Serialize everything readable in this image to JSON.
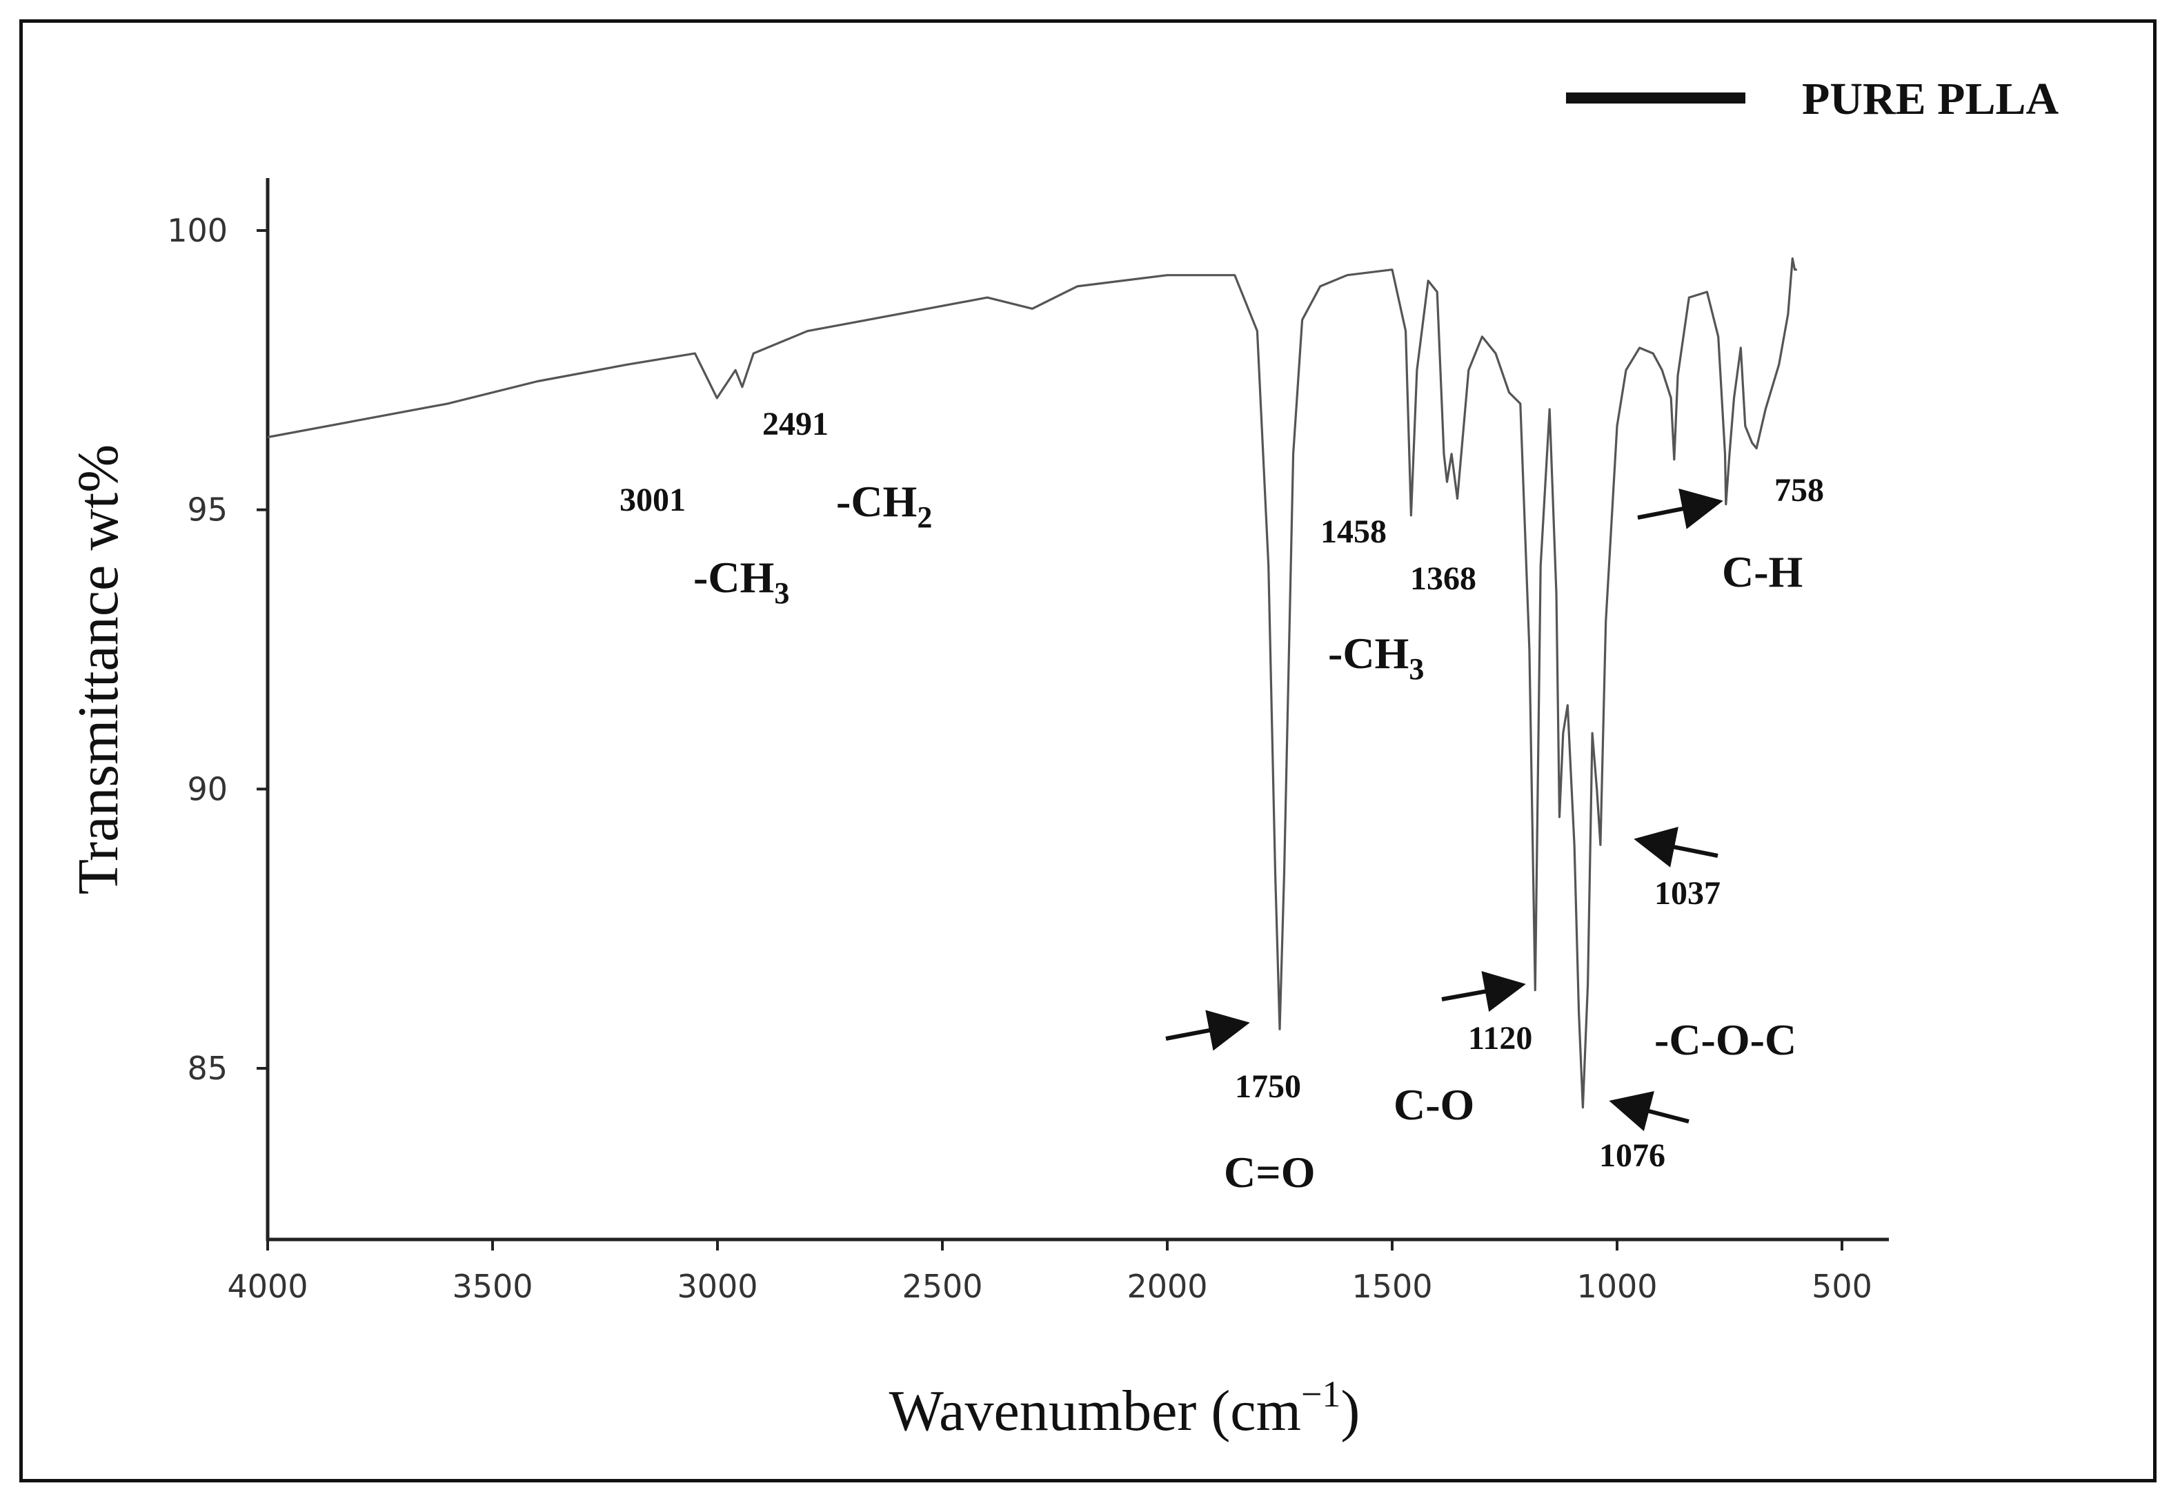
{
  "chart_data": {
    "type": "line",
    "xlabel": "Wavenumber (cm",
    "xlabel_sup": "−1",
    "xlabel_tail": ")",
    "ylabel": "Transmittance wt%",
    "xlim": [
      4000,
      450
    ],
    "ylim": [
      82,
      101
    ],
    "x_ticks": [
      4000,
      3500,
      3000,
      2500,
      2000,
      1500,
      1000,
      500
    ],
    "y_ticks": [
      85,
      90,
      95,
      100
    ],
    "legend": {
      "label": "PURE PLLA",
      "position": "top-right"
    },
    "series": [
      {
        "name": "PURE PLLA",
        "color": "#555555",
        "x": [
          4000,
          3800,
          3600,
          3400,
          3200,
          3050,
          3001,
          2960,
          2945,
          2920,
          2800,
          2600,
          2400,
          2350,
          2300,
          2200,
          2000,
          1850,
          1800,
          1775,
          1760,
          1750,
          1740,
          1720,
          1700,
          1660,
          1600,
          1500,
          1470,
          1458,
          1445,
          1420,
          1400,
          1385,
          1378,
          1368,
          1355,
          1330,
          1300,
          1270,
          1240,
          1215,
          1195,
          1182,
          1170,
          1150,
          1135,
          1128,
          1120,
          1110,
          1095,
          1085,
          1076,
          1065,
          1055,
          1045,
          1037,
          1025,
          1000,
          980,
          950,
          920,
          900,
          880,
          873,
          865,
          840,
          800,
          775,
          760,
          758,
          750,
          740,
          725,
          715,
          700,
          690,
          670,
          640,
          620,
          610,
          605,
          600
        ],
        "y": [
          96.3,
          96.6,
          96.9,
          97.3,
          97.6,
          97.8,
          97.0,
          97.5,
          97.2,
          97.8,
          98.2,
          98.5,
          98.8,
          98.7,
          98.6,
          99.0,
          99.2,
          99.2,
          98.2,
          94.0,
          88.5,
          85.7,
          88.5,
          96.0,
          98.4,
          99.0,
          99.2,
          99.3,
          98.2,
          94.9,
          97.5,
          99.1,
          98.9,
          96.0,
          95.5,
          96.0,
          95.2,
          97.5,
          98.1,
          97.8,
          97.1,
          96.9,
          92.5,
          86.4,
          94.0,
          96.8,
          93.5,
          89.5,
          91.0,
          91.5,
          89.0,
          86.0,
          84.3,
          86.5,
          91.0,
          90.0,
          89.0,
          93.0,
          96.5,
          97.5,
          97.9,
          97.8,
          97.5,
          97.0,
          95.9,
          97.4,
          98.8,
          98.9,
          98.1,
          96.0,
          95.1,
          96.0,
          97.0,
          97.9,
          96.5,
          96.2,
          96.1,
          96.8,
          97.6,
          98.5,
          99.5,
          99.3,
          99.3
        ]
      }
    ],
    "annotations": [
      {
        "text": "3001",
        "kind": "num"
      },
      {
        "text": "2491",
        "kind": "num"
      },
      {
        "text": "-CH",
        "sub": "3",
        "kind": "grp"
      },
      {
        "text": "-CH",
        "sub": "2",
        "kind": "grp"
      },
      {
        "text": "1458",
        "kind": "num"
      },
      {
        "text": "1368",
        "kind": "num"
      },
      {
        "text": "-CH",
        "sub": "3",
        "kind": "grp"
      },
      {
        "text": "1750",
        "kind": "num"
      },
      {
        "text": "C=O",
        "kind": "grp"
      },
      {
        "text": "1120",
        "kind": "num"
      },
      {
        "text": "C-O",
        "kind": "grp"
      },
      {
        "text": "1076",
        "kind": "num"
      },
      {
        "text": "1037",
        "kind": "num"
      },
      {
        "text": "-C-O-C",
        "kind": "grp"
      },
      {
        "text": "758",
        "kind": "num"
      },
      {
        "text": "C-H",
        "kind": "grp"
      }
    ]
  }
}
